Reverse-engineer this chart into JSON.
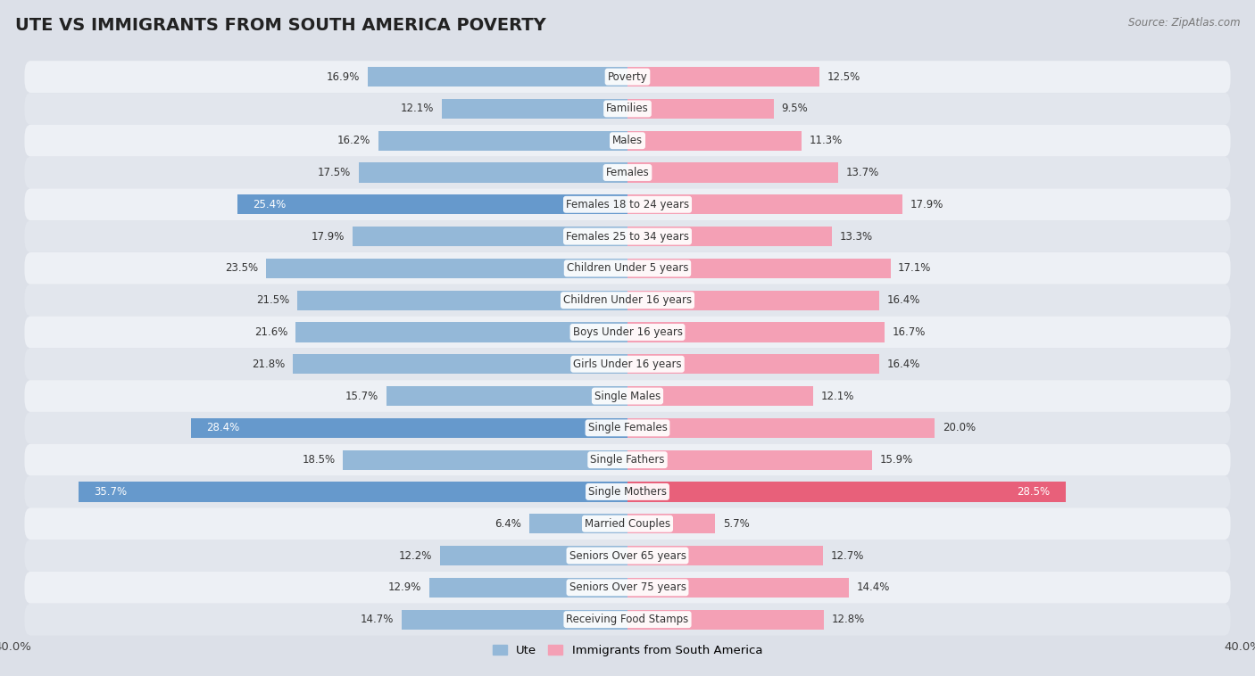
{
  "title": "UTE VS IMMIGRANTS FROM SOUTH AMERICA POVERTY",
  "source": "Source: ZipAtlas.com",
  "categories": [
    "Poverty",
    "Families",
    "Males",
    "Females",
    "Females 18 to 24 years",
    "Females 25 to 34 years",
    "Children Under 5 years",
    "Children Under 16 years",
    "Boys Under 16 years",
    "Girls Under 16 years",
    "Single Males",
    "Single Females",
    "Single Fathers",
    "Single Mothers",
    "Married Couples",
    "Seniors Over 65 years",
    "Seniors Over 75 years",
    "Receiving Food Stamps"
  ],
  "ute_values": [
    16.9,
    12.1,
    16.2,
    17.5,
    25.4,
    17.9,
    23.5,
    21.5,
    21.6,
    21.8,
    15.7,
    28.4,
    18.5,
    35.7,
    6.4,
    12.2,
    12.9,
    14.7
  ],
  "immig_values": [
    12.5,
    9.5,
    11.3,
    13.7,
    17.9,
    13.3,
    17.1,
    16.4,
    16.7,
    16.4,
    12.1,
    20.0,
    15.9,
    28.5,
    5.7,
    12.7,
    14.4,
    12.8
  ],
  "ute_color": "#94b8d8",
  "immig_color": "#f4a0b5",
  "ute_highlight_indices": [
    4,
    11,
    13
  ],
  "immig_highlight_indices": [
    13
  ],
  "ute_highlight_color": "#6699cc",
  "immig_highlight_color": "#e8607a",
  "xlim": 40.0,
  "legend_ute": "Ute",
  "legend_immig": "Immigrants from South America",
  "title_fontsize": 14,
  "label_fontsize": 8.5,
  "value_fontsize": 8.5,
  "row_colors": [
    "#f0f2f5",
    "#e8ecf0"
  ],
  "bg_color": "#dce0e8"
}
